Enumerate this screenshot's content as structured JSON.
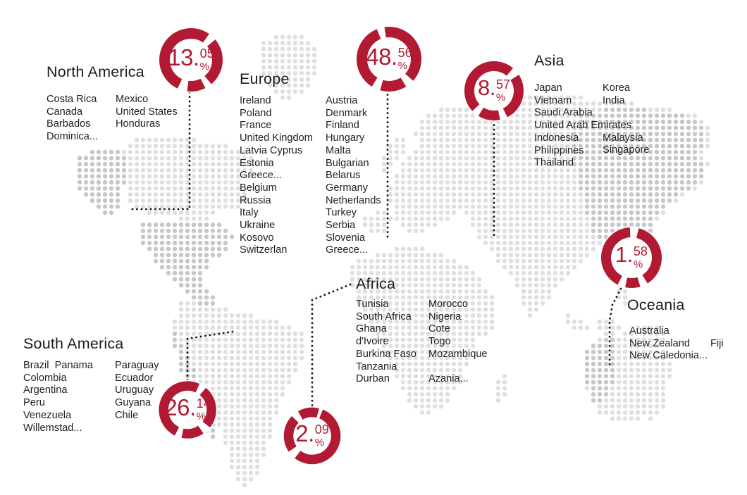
{
  "colors": {
    "accent": "#b11a32",
    "text": "#1f1f1f",
    "dot_light": "#dfdfdf",
    "dot_dark": "#c7c7c7",
    "leader": "#141414"
  },
  "chart_data": {
    "type": "pie",
    "title": "",
    "categories": [
      "North America",
      "Europe",
      "Asia",
      "Oceania",
      "South America",
      "Africa"
    ],
    "values": [
      13.05,
      48.56,
      8.57,
      1.58,
      26.14,
      2.09
    ],
    "unit": "%",
    "legend_position": "none"
  },
  "regions": [
    {
      "id": "north-america",
      "title": "North America",
      "percent": {
        "main": "13",
        "dot": ".",
        "sup": "05",
        "unit": "%"
      },
      "columns": [
        [
          "Costa Rica",
          "Canada",
          "Barbados",
          "Dominica..."
        ],
        [
          "Mexico",
          "United States",
          "Honduras"
        ]
      ]
    },
    {
      "id": "europe",
      "title": "Europe",
      "percent": {
        "main": "48",
        "dot": ".",
        "sup": "56",
        "unit": "%"
      },
      "columns": [
        [
          "Ireland",
          "Poland",
          "France",
          "United Kingdom",
          "Latvia Cyprus",
          "Estonia",
          "Greece...",
          "Belgium",
          "Russia",
          "Italy",
          "Ukraine",
          "Kosovo",
          "Switzerlan"
        ],
        [
          "Austria",
          "Denmark",
          "Finland",
          "Hungary",
          "Malta",
          "Bulgarian",
          "Belarus",
          "Germany",
          "Netherlands",
          "Turkey",
          "Serbia",
          "Slovenia",
          "Greece..."
        ]
      ]
    },
    {
      "id": "asia",
      "title": "Asia",
      "percent": {
        "main": "8",
        "dot": ".",
        "sup": "57",
        "unit": "%"
      },
      "columns": [
        [
          "Japan",
          "Vietnam",
          "Saudi Arabia",
          "United Arab Emirates",
          "Indonesia",
          "Philippines",
          "Thailand"
        ],
        [
          "Korea",
          "India",
          "",
          "",
          "Malaysia",
          "Singapore",
          ""
        ]
      ]
    },
    {
      "id": "oceania",
      "title": "Oceania",
      "percent": {
        "main": "1",
        "dot": ".",
        "sup": "58",
        "unit": "%"
      },
      "columns": [
        [
          "Australia",
          "New Zealand",
          "New Caledonia..."
        ],
        [
          "",
          "Fiji",
          ""
        ]
      ]
    },
    {
      "id": "south-america",
      "title": "South America",
      "percent": {
        "main": "26",
        "dot": ".",
        "sup": "14",
        "unit": "%"
      },
      "columns": [
        [
          "Brazil  Panama",
          "Colombia",
          "Argentina",
          "Peru",
          "Venezuela",
          "Willemstad..."
        ],
        [
          "Paraguay",
          "Ecuador",
          "Uruguay",
          "Guyana",
          "Chile"
        ]
      ]
    },
    {
      "id": "africa",
      "title": "Africa",
      "percent": {
        "main": "2",
        "dot": ".",
        "sup": "09",
        "unit": "%"
      },
      "columns": [
        [
          "Tunisia",
          "South Africa",
          "Ghana",
          "d'Ivoire",
          "Burkina Faso",
          "Tanzania",
          "Durban"
        ],
        [
          "Morocco",
          "Nigeria",
          "Cote",
          "Togo",
          "Mozambique",
          "",
          "Azania..."
        ]
      ]
    }
  ]
}
